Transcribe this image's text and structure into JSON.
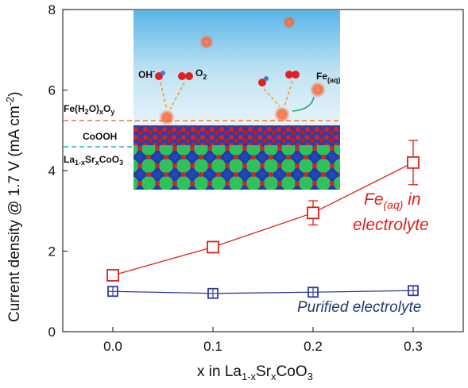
{
  "chart_data": {
    "type": "line",
    "title": "",
    "xlabel": "x in La",
    "xlabel_sub1": "1-x",
    "xlabel_mid": "Sr",
    "xlabel_sub2": "x",
    "xlabel_end": "CoO",
    "xlabel_sub3": "3",
    "ylabel_main": "Current density @ 1.7 V  (mA cm",
    "ylabel_sup": "-2",
    "ylabel_end": ")",
    "xlim": [
      -0.05,
      0.35
    ],
    "ylim": [
      0,
      8
    ],
    "x_ticks": [
      "0.0",
      "0.1",
      "0.2",
      "0.3"
    ],
    "y_ticks": [
      "0",
      "2",
      "4",
      "6",
      "8"
    ],
    "x": [
      0.0,
      0.1,
      0.2,
      0.3
    ],
    "grid": false,
    "series": [
      {
        "name": "Fe(aq) in electrolyte",
        "color": "#e0201b",
        "marker": "open-square",
        "values": [
          1.4,
          2.1,
          2.95,
          4.2
        ],
        "error": [
          0.05,
          0.05,
          0.3,
          0.55
        ]
      },
      {
        "name": "Purified electrolyte",
        "color": "#2f3aa0",
        "marker": "crossed-square",
        "values": [
          1.0,
          0.95,
          0.98,
          1.02
        ],
        "error": [
          0.05,
          0.05,
          0.05,
          0.05
        ]
      }
    ],
    "legend": {
      "red_line1_pre": "Fe",
      "red_line1_sub": "(aq)",
      "red_line1_post": " in",
      "red_line2": "electrolyte",
      "blue": "Purified electrolyte"
    },
    "inset": {
      "oh_label": "OH",
      "oh_sup": "-",
      "o2_label": "O",
      "o2_sub": "2",
      "fe_aq_label": "Fe",
      "fe_aq_sub": "(aq)",
      "layer1_a": "Fe(H",
      "layer1_b": "2",
      "layer1_c": "O)",
      "layer1_d": "x",
      "layer1_e": "O",
      "layer1_f": "y",
      "layer2": "CoOOH",
      "layer3_a": "La",
      "layer3_b": "1-x",
      "layer3_c": "Sr",
      "layer3_d": "x",
      "layer3_e": "CoO",
      "layer3_f": "3"
    }
  }
}
